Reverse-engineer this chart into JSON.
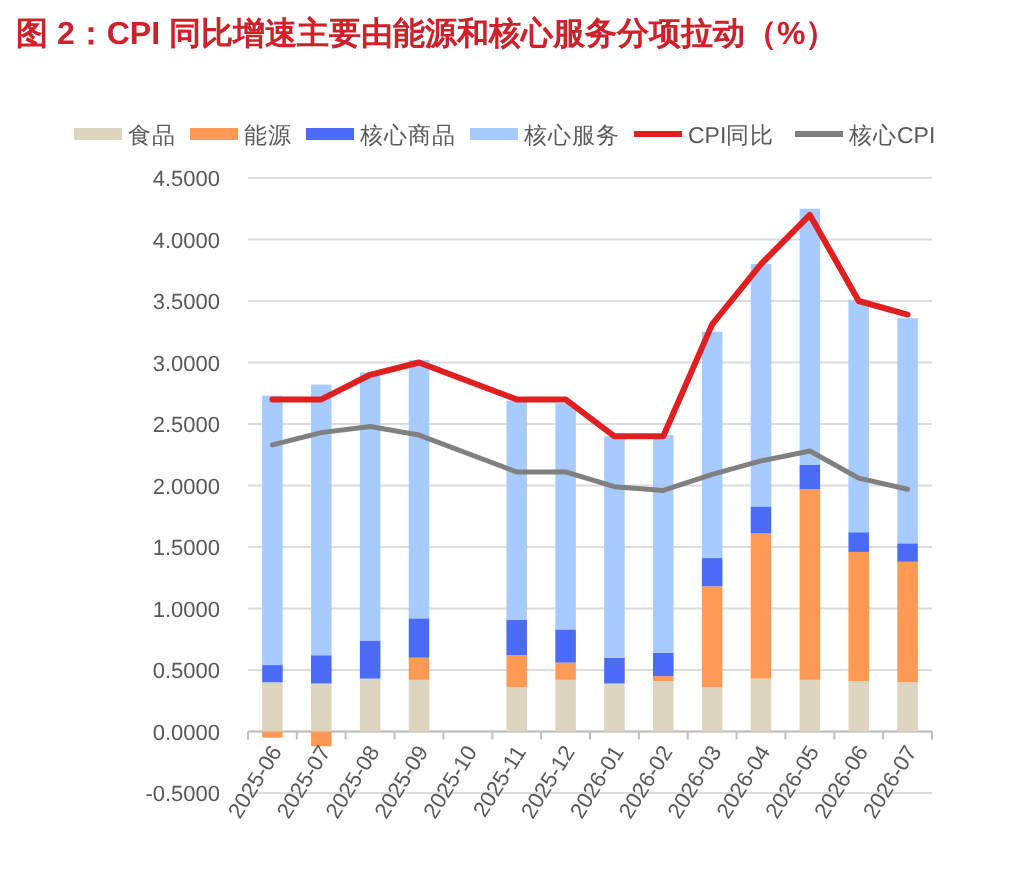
{
  "chart_data": {
    "type": "bar",
    "title": "图 2：CPI 同比增速主要由能源和核心服务分项拉动（%）",
    "stacked": true,
    "grid": "y",
    "legend": "top",
    "categories": [
      "2025-06",
      "2025-07",
      "2025-08",
      "2025-09",
      "2025-10",
      "2025-11",
      "2025-12",
      "2026-01",
      "2026-02",
      "2026-03",
      "2026-04",
      "2026-05",
      "2026-06",
      "2026-07"
    ],
    "ylim": [
      -0.5,
      4.5
    ],
    "yticks": [
      {
        "value": -0.5,
        "label": "-0.5000"
      },
      {
        "value": 0,
        "label": "0.0000"
      },
      {
        "value": 0.5,
        "label": "0.5000"
      },
      {
        "value": 1,
        "label": "1.0000"
      },
      {
        "value": 1.5,
        "label": "1.5000"
      },
      {
        "value": 2,
        "label": "2.0000"
      },
      {
        "value": 2.5,
        "label": "2.5000"
      },
      {
        "value": 3,
        "label": "3.0000"
      },
      {
        "value": 3.5,
        "label": "3.5000"
      },
      {
        "value": 4,
        "label": "4.0000"
      },
      {
        "value": 4.5,
        "label": "4.5000"
      }
    ],
    "series": [
      {
        "name": "食品",
        "color": "#ddd5bf",
        "values": [
          0.4,
          0.39,
          0.43,
          0.42,
          null,
          0.36,
          0.42,
          0.39,
          0.41,
          0.36,
          0.43,
          0.42,
          0.41,
          0.4
        ]
      },
      {
        "name": "能源",
        "color": "#ff9a56",
        "values": [
          -0.05,
          -0.12,
          0.0,
          0.18,
          null,
          0.26,
          0.14,
          0.0,
          0.04,
          0.82,
          1.18,
          1.55,
          1.05,
          0.98
        ]
      },
      {
        "name": "核心商品",
        "color": "#4a6bf5",
        "values": [
          0.14,
          0.23,
          0.31,
          0.32,
          null,
          0.29,
          0.27,
          0.21,
          0.19,
          0.23,
          0.22,
          0.2,
          0.16,
          0.15
        ]
      },
      {
        "name": "核心服务",
        "color": "#a8cbff",
        "values": [
          2.19,
          2.2,
          2.18,
          2.1,
          null,
          1.78,
          1.84,
          1.8,
          1.77,
          1.84,
          1.97,
          2.08,
          1.89,
          1.83
        ]
      },
      {
        "name": "CPI同比",
        "type": "line",
        "color": "#e02020",
        "values": [
          2.7,
          2.7,
          2.9,
          3.0,
          2.85,
          2.7,
          2.7,
          2.4,
          2.4,
          3.31,
          3.8,
          4.2,
          3.5,
          3.39
        ]
      },
      {
        "name": "核心CPI",
        "type": "line",
        "color": "#808080",
        "values": [
          2.33,
          2.43,
          2.48,
          2.41,
          2.26,
          2.11,
          2.11,
          1.99,
          1.96,
          2.09,
          2.2,
          2.28,
          2.06,
          1.97
        ]
      }
    ]
  }
}
